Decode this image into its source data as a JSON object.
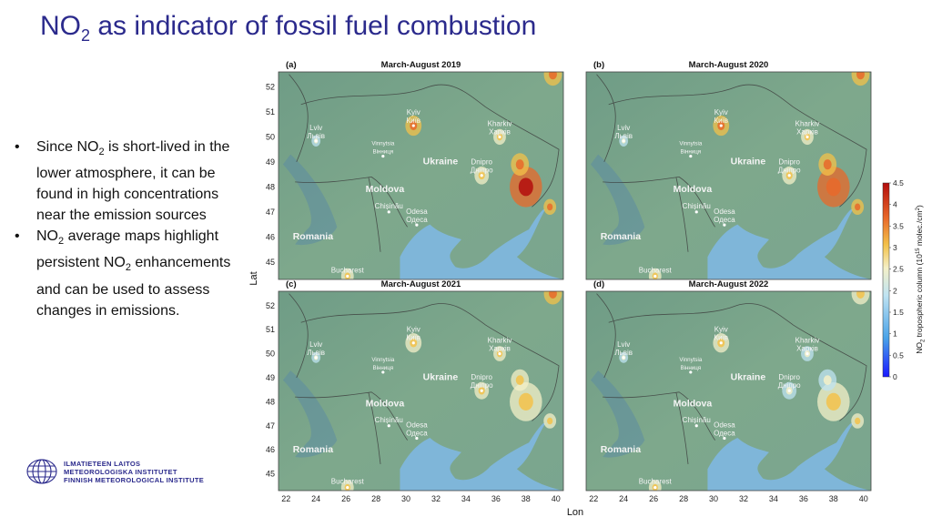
{
  "slide": {
    "title_pre": "NO",
    "title_sub": "2",
    "title_post": " as indicator of fossil fuel combustion"
  },
  "bullets": [
    {
      "pre": "Since NO",
      "sub": "2",
      "post": " is short-lived in the lower atmosphere, it can be found in high concentrations near the emission sources",
      "sub2": "",
      "post2": ""
    },
    {
      "pre": "NO",
      "sub": "2",
      "post": " average maps highlight persistent NO",
      "sub2": "2",
      "post2": " enhancements and can be used to assess changes in emissions."
    }
  ],
  "logo": {
    "icon": "fmi-globe-logo",
    "lines": [
      "ILMATIETEEN LAITOS",
      "METEOROLOGISKA INSTITUTET",
      "FINNISH METEOROLOGICAL INSTITUTE"
    ]
  },
  "map_figure": {
    "lat_label": "Lat",
    "lon_label": "Lon",
    "lon_ticks": [
      22,
      24,
      26,
      28,
      30,
      32,
      34,
      36,
      38,
      40
    ],
    "lat_ticks": [
      45,
      46,
      47,
      48,
      49,
      50,
      51,
      52
    ],
    "lon_range": [
      21.5,
      40.5
    ],
    "lat_range": [
      44.3,
      52.6
    ],
    "panels": [
      {
        "tag": "(a)",
        "title": "March-August 2019"
      },
      {
        "tag": "(b)",
        "title": "March-August 2020"
      },
      {
        "tag": "(c)",
        "title": "March-August 2021"
      },
      {
        "tag": "(d)",
        "title": "March-August 2022"
      }
    ],
    "place_labels": [
      {
        "text": "Kyiv",
        "text2": "Київ",
        "lon": 30.5,
        "lat": 50.45,
        "style": "city"
      },
      {
        "text": "Kharkiv",
        "text2": "Харків",
        "lon": 36.25,
        "lat": 50.0,
        "style": "city"
      },
      {
        "text": "Lviv",
        "text2": "Львів",
        "lon": 24.0,
        "lat": 49.84,
        "style": "city"
      },
      {
        "text": "Vinnytsia",
        "text2": "Вінниця",
        "lon": 28.47,
        "lat": 49.23,
        "style": "small"
      },
      {
        "text": "Dnipro",
        "text2": "Дніпро",
        "lon": 35.05,
        "lat": 48.46,
        "style": "city"
      },
      {
        "text": "Chișinău",
        "text2": "",
        "lon": 28.86,
        "lat": 47.0,
        "style": "city"
      },
      {
        "text": "Odesa",
        "text2": "Одеса",
        "lon": 30.72,
        "lat": 46.48,
        "style": "city"
      },
      {
        "text": "Bucharest",
        "text2": "",
        "lon": 26.1,
        "lat": 44.43,
        "style": "city"
      },
      {
        "text": "Ukraine",
        "text2": "",
        "lon": 32.3,
        "lat": 48.9,
        "style": "country"
      },
      {
        "text": "Moldova",
        "text2": "",
        "lon": 28.6,
        "lat": 47.8,
        "style": "country"
      },
      {
        "text": "Romania",
        "text2": "",
        "lon": 23.8,
        "lat": 45.9,
        "style": "country"
      }
    ],
    "hotspots": [
      {
        "lon": 38.0,
        "lat": 48.0,
        "r": 0.9,
        "values": [
          4.2,
          3.8,
          2.8,
          2.6
        ]
      },
      {
        "lon": 37.6,
        "lat": 48.9,
        "r": 0.5,
        "values": [
          3.6,
          3.2,
          2.5,
          2.2
        ]
      },
      {
        "lon": 30.5,
        "lat": 50.45,
        "r": 0.45,
        "values": [
          3.4,
          3.2,
          3.0,
          2.6
        ]
      },
      {
        "lon": 36.25,
        "lat": 50.0,
        "r": 0.35,
        "values": [
          3.0,
          2.8,
          2.6,
          2.2
        ]
      },
      {
        "lon": 35.05,
        "lat": 48.46,
        "r": 0.4,
        "values": [
          3.0,
          2.8,
          2.6,
          2.4
        ]
      },
      {
        "lon": 39.8,
        "lat": 52.5,
        "r": 0.5,
        "values": [
          3.6,
          3.4,
          3.2,
          3.0
        ]
      },
      {
        "lon": 26.1,
        "lat": 44.43,
        "r": 0.35,
        "values": [
          3.0,
          2.8,
          2.8,
          2.8
        ]
      },
      {
        "lon": 39.6,
        "lat": 47.2,
        "r": 0.35,
        "values": [
          3.2,
          3.2,
          3.0,
          3.0
        ]
      },
      {
        "lon": 24.0,
        "lat": 49.84,
        "r": 0.25,
        "values": [
          2.4,
          2.2,
          2.2,
          2.0
        ]
      }
    ],
    "colorbar": {
      "label_pre": "NO",
      "label_sub": "2",
      "label_mid": " tropospheric column (10",
      "label_sup": "15",
      "label_post": " molec./cm",
      "label_sup2": "2",
      "label_end": ")",
      "ticks": [
        0,
        0.5,
        1,
        1.5,
        2,
        2.5,
        3,
        3.5,
        4,
        4.5
      ],
      "range": [
        0,
        4.5
      ]
    }
  }
}
